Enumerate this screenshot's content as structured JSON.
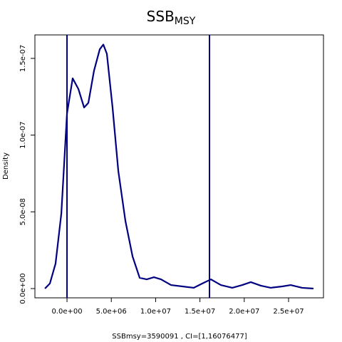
{
  "chart_data": {
    "type": "line",
    "title": "SSB",
    "title_subscript": "MSY",
    "xlabel": "SSBmsy=3590091 , CI=[1,16076477]",
    "ylabel": "Density",
    "x": [
      -2490000,
      -1930000,
      -1290000,
      -640000,
      0,
      640000,
      1290000,
      1930000,
      2410000,
      3050000,
      3700000,
      4100000,
      4500000,
      5140000,
      5790000,
      6590000,
      7400000,
      8200000,
      9000000,
      9810000,
      10610000,
      11740000,
      13020000,
      14310000,
      15270000,
      16240000,
      17360000,
      18650000,
      19770000,
      20740000,
      21870000,
      22990000,
      24280000,
      25240000,
      26530000,
      27810000
    ],
    "series": [
      {
        "name": "Density",
        "color": "#000080",
        "values": [
          0,
          3.3e-09,
          1.63e-08,
          4.88e-08,
          1.14e-07,
          1.37e-07,
          1.3e-07,
          1.18e-07,
          1.21e-07,
          1.42e-07,
          1.56e-07,
          1.59e-07,
          1.53e-07,
          1.18e-07,
          7.66e-08,
          4.41e-08,
          2.09e-08,
          7e-09,
          6e-09,
          7.4e-09,
          6e-09,
          2.3e-09,
          1.4e-09,
          5e-10,
          3.3e-09,
          6e-09,
          2.3e-09,
          5e-10,
          2.3e-09,
          4.2e-09,
          1.9e-09,
          5e-10,
          1.4e-09,
          2.3e-09,
          5e-10,
          0
        ]
      }
    ],
    "vlines": [
      1,
      16076477
    ],
    "vline_color": "#000080",
    "xlim": [
      -3620000,
      28940000
    ],
    "ylim": [
      -6.04e-09,
      1.653e-07
    ],
    "xticks": [
      {
        "value": 0,
        "label": "0.0e+00"
      },
      {
        "value": 5000000,
        "label": "5.0e+06"
      },
      {
        "value": 10000000,
        "label": "1.0e+07"
      },
      {
        "value": 15000000,
        "label": "1.5e+07"
      },
      {
        "value": 20000000,
        "label": "2.0e+07"
      },
      {
        "value": 25000000,
        "label": "2.5e+07"
      }
    ],
    "yticks": [
      {
        "value": 0,
        "label": "0.0e+00"
      },
      {
        "value": 5e-08,
        "label": "5.0e-08"
      },
      {
        "value": 1e-07,
        "label": "1.0e-07"
      },
      {
        "value": 1.5e-07,
        "label": "1.5e-07"
      }
    ]
  }
}
